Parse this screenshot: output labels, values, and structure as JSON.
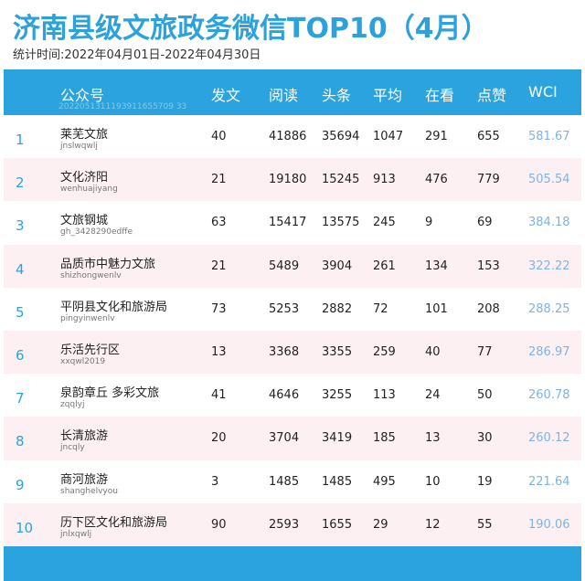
{
  "title": "济南县级文旅政务微信TOP10（4月）",
  "stat_period": "统计时间:2022年04月01日-2022年04月30日",
  "watermark": "2022051311193911655709 33",
  "headers": {
    "account": "公众号",
    "posts": "发文",
    "reads": "阅读",
    "headline": "头条",
    "average": "平均",
    "watching": "在看",
    "likes": "点赞",
    "wci": "WCI"
  },
  "rows": [
    {
      "rank": "1",
      "name": "莱芜文旅",
      "account_id": "jnslwqwlj",
      "posts": "40",
      "reads": "41886",
      "headline": "35694",
      "average": "1047",
      "watching": "291",
      "likes": "655",
      "wci": "581.67"
    },
    {
      "rank": "2",
      "name": "文化济阳",
      "account_id": "wenhuajiyang",
      "posts": "21",
      "reads": "19180",
      "headline": "15245",
      "average": "913",
      "watching": "476",
      "likes": "779",
      "wci": "505.54"
    },
    {
      "rank": "3",
      "name": "文旅钢城",
      "account_id": "gh_3428290edffe",
      "posts": "63",
      "reads": "15417",
      "headline": "13575",
      "average": "245",
      "watching": "9",
      "likes": "69",
      "wci": "384.18"
    },
    {
      "rank": "4",
      "name": "品质市中魅力文旅",
      "account_id": "shizhongwenlv",
      "posts": "21",
      "reads": "5489",
      "headline": "3904",
      "average": "261",
      "watching": "134",
      "likes": "153",
      "wci": "322.22"
    },
    {
      "rank": "5",
      "name": "平阴县文化和旅游局",
      "account_id": "pingyinwenlv",
      "posts": "73",
      "reads": "5253",
      "headline": "2882",
      "average": "72",
      "watching": "101",
      "likes": "208",
      "wci": "288.25"
    },
    {
      "rank": "6",
      "name": "乐活先行区",
      "account_id": "xxqwl2019",
      "posts": "13",
      "reads": "3368",
      "headline": "3355",
      "average": "259",
      "watching": "40",
      "likes": "77",
      "wci": "286.97"
    },
    {
      "rank": "7",
      "name": "泉韵章丘 多彩文旅",
      "account_id": "zqqlyj",
      "posts": "41",
      "reads": "4646",
      "headline": "3255",
      "average": "113",
      "watching": "24",
      "likes": "50",
      "wci": "260.78"
    },
    {
      "rank": "8",
      "name": "长清旅游",
      "account_id": "jncqly",
      "posts": "20",
      "reads": "3704",
      "headline": "3419",
      "average": "185",
      "watching": "13",
      "likes": "30",
      "wci": "260.12"
    },
    {
      "rank": "9",
      "name": "商河旅游",
      "account_id": "shanghelvyou",
      "posts": "3",
      "reads": "1485",
      "headline": "1485",
      "average": "495",
      "watching": "10",
      "likes": "19",
      "wci": "221.64"
    },
    {
      "rank": "10",
      "name": "历下区文化和旅游局",
      "account_id": "jnlxqwlj",
      "posts": "90",
      "reads": "2593",
      "headline": "1655",
      "average": "29",
      "watching": "12",
      "likes": "55",
      "wci": "190.06"
    }
  ]
}
